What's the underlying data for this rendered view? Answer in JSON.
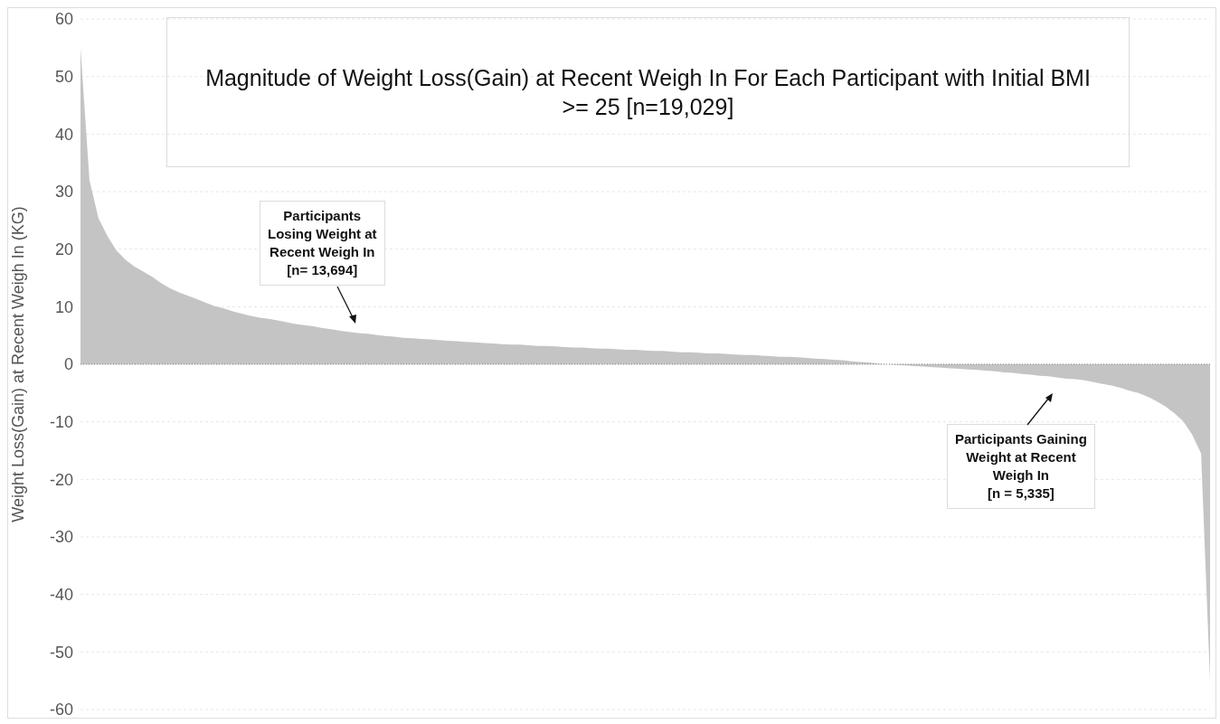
{
  "chart_data": {
    "type": "area",
    "title": "Magnitude of Weight Loss(Gain) at Recent Weigh In For Each Participant with Initial BMI >= 25 [n=19,029]",
    "ylabel": "Weight Loss(Gain) at Recent Weigh In (KG)",
    "annotations": [
      "Participants\nLosing Weight at\nRecent Weigh In\n[n= 13,694]",
      "Participants Gaining\nWeight at Recent\nWeigh In\n[n = 5,335]"
    ],
    "categories": [
      null,
      null,
      null,
      null,
      null,
      null,
      null,
      null,
      null,
      null,
      null,
      null,
      null,
      null,
      null,
      null,
      null,
      null,
      null,
      null,
      null,
      null,
      null,
      null,
      null,
      null,
      null,
      null,
      null,
      null,
      null,
      null,
      null,
      null,
      null,
      null,
      null,
      null,
      null,
      null,
      null,
      null,
      null,
      null,
      null,
      null,
      null,
      null,
      null,
      null,
      null,
      null,
      null,
      null,
      null,
      null,
      null,
      null,
      null,
      null,
      null,
      null,
      null,
      null,
      null,
      null,
      null,
      null,
      null,
      null,
      null,
      null,
      null,
      null,
      null,
      null,
      null,
      null,
      null,
      null,
      null,
      null,
      null,
      null,
      null,
      null,
      null,
      null,
      null,
      null,
      null,
      null,
      null,
      null,
      null,
      null,
      null,
      null,
      null,
      null,
      null,
      null,
      null,
      null,
      null,
      null,
      null,
      null,
      null,
      null,
      null,
      null,
      null,
      null,
      null,
      null,
      null,
      null,
      null,
      null,
      null,
      null,
      null,
      null,
      null,
      null,
      null
    ],
    "series": [
      {
        "color": "#c4c4c4",
        "values": [
          55,
          32,
          25.4,
          22.3,
          19.8,
          18.2,
          17,
          16.1,
          15.2,
          14.1,
          13.2,
          12.5,
          11.9,
          11.3,
          10.7,
          10.1,
          9.7,
          9.2,
          8.8,
          8.4,
          8.1,
          7.9,
          7.6,
          7.3,
          7.0,
          6.8,
          6.6,
          6.3,
          6.1,
          5.8,
          5.6,
          5.4,
          5.3,
          5.1,
          4.9,
          4.8,
          4.6,
          4.5,
          4.4,
          4.3,
          4.2,
          4.1,
          4.0,
          3.9,
          3.8,
          3.7,
          3.6,
          3.5,
          3.4,
          3.4,
          3.3,
          3.2,
          3.2,
          3.1,
          3.0,
          2.9,
          2.9,
          2.8,
          2.7,
          2.7,
          2.6,
          2.5,
          2.5,
          2.4,
          2.3,
          2.3,
          2.2,
          2.1,
          2.1,
          2.0,
          1.9,
          1.9,
          1.8,
          1.7,
          1.6,
          1.6,
          1.5,
          1.4,
          1.3,
          1.3,
          1.2,
          1.1,
          1.0,
          0.9,
          0.8,
          0.7,
          0.5,
          0.4,
          0.3,
          0.1,
          0,
          -0.1,
          -0.2,
          -0.3,
          -0.4,
          -0.5,
          -0.6,
          -0.7,
          -0.8,
          -0.9,
          -1.0,
          -1.1,
          -1.2,
          -1.4,
          -1.5,
          -1.7,
          -1.8,
          -2.0,
          -2.1,
          -2.3,
          -2.5,
          -2.6,
          -2.8,
          -3.1,
          -3.4,
          -3.7,
          -4.1,
          -4.6,
          -5.0,
          -5.6,
          -6.4,
          -7.3,
          -8.5,
          -9.9,
          -12.2,
          -15.5,
          -55
        ]
      }
    ],
    "ylim": [
      -60,
      60
    ],
    "yticks": [
      -60,
      -50,
      -40,
      -30,
      -20,
      -10,
      0,
      10,
      20,
      30,
      40,
      50,
      60
    ],
    "ref_lines": [
      {
        "axis": "y",
        "value": 0,
        "line_style": "dotted",
        "color": "#808080"
      }
    ],
    "grid": "y",
    "legend": false,
    "tick_labels": "y"
  }
}
